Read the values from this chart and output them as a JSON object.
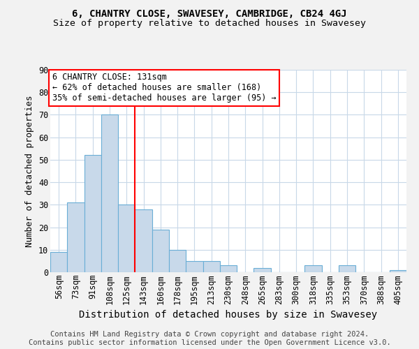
{
  "title1": "6, CHANTRY CLOSE, SWAVESEY, CAMBRIDGE, CB24 4GJ",
  "title2": "Size of property relative to detached houses in Swavesey",
  "xlabel": "Distribution of detached houses by size in Swavesey",
  "ylabel": "Number of detached properties",
  "categories": [
    "56sqm",
    "73sqm",
    "91sqm",
    "108sqm",
    "125sqm",
    "143sqm",
    "160sqm",
    "178sqm",
    "195sqm",
    "213sqm",
    "230sqm",
    "248sqm",
    "265sqm",
    "283sqm",
    "300sqm",
    "318sqm",
    "335sqm",
    "353sqm",
    "370sqm",
    "388sqm",
    "405sqm"
  ],
  "values": [
    9,
    31,
    52,
    70,
    30,
    28,
    19,
    10,
    5,
    5,
    3,
    0,
    2,
    0,
    0,
    3,
    0,
    3,
    0,
    0,
    1
  ],
  "bar_color": "#c8d9ea",
  "bar_edgecolor": "#6aaed6",
  "red_line_x": 4.5,
  "annotation_line1": "6 CHANTRY CLOSE: 131sqm",
  "annotation_line2": "← 62% of detached houses are smaller (168)",
  "annotation_line3": "35% of semi-detached houses are larger (95) →",
  "annotation_box_color": "white",
  "annotation_box_edgecolor": "red",
  "red_line_color": "red",
  "ylim": [
    0,
    90
  ],
  "yticks": [
    0,
    10,
    20,
    30,
    40,
    50,
    60,
    70,
    80,
    90
  ],
  "footer_text": "Contains HM Land Registry data © Crown copyright and database right 2024.\nContains public sector information licensed under the Open Government Licence v3.0.",
  "background_color": "#f2f2f2",
  "plot_background_color": "white",
  "title1_fontsize": 10,
  "title2_fontsize": 9.5,
  "xlabel_fontsize": 10,
  "ylabel_fontsize": 9,
  "annotation_fontsize": 8.5,
  "footer_fontsize": 7.5,
  "tick_fontsize": 8.5
}
